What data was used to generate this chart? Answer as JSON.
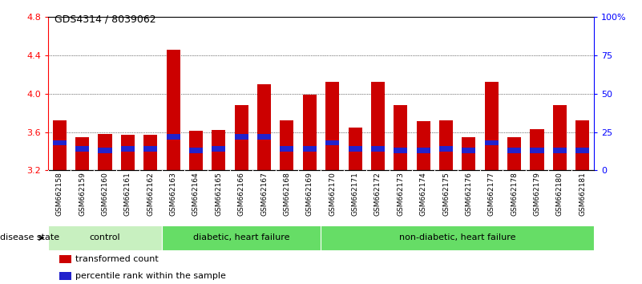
{
  "title": "GDS4314 / 8039062",
  "samples": [
    "GSM662158",
    "GSM662159",
    "GSM662160",
    "GSM662161",
    "GSM662162",
    "GSM662163",
    "GSM662164",
    "GSM662165",
    "GSM662166",
    "GSM662167",
    "GSM662168",
    "GSM662169",
    "GSM662170",
    "GSM662171",
    "GSM662172",
    "GSM662173",
    "GSM662174",
    "GSM662175",
    "GSM662176",
    "GSM662177",
    "GSM662178",
    "GSM662179",
    "GSM662180",
    "GSM662181"
  ],
  "transformed_count": [
    3.72,
    3.55,
    3.58,
    3.57,
    3.57,
    4.46,
    3.61,
    3.62,
    3.88,
    4.1,
    3.72,
    3.99,
    4.12,
    3.65,
    4.12,
    3.88,
    3.71,
    3.72,
    3.55,
    4.12,
    3.55,
    3.63,
    3.88,
    3.72
  ],
  "percentile_rank_pct": [
    18,
    14,
    13,
    14,
    14,
    22,
    13,
    14,
    22,
    22,
    14,
    14,
    18,
    14,
    14,
    13,
    13,
    14,
    13,
    18,
    13,
    13,
    13,
    13
  ],
  "ylim_left": [
    3.2,
    4.8
  ],
  "ylim_right": [
    0,
    100
  ],
  "yticks_left": [
    3.2,
    3.6,
    4.0,
    4.4,
    4.8
  ],
  "yticks_right": [
    0,
    25,
    50,
    75,
    100
  ],
  "ytick_labels_right": [
    "0",
    "25",
    "50",
    "75",
    "100%"
  ],
  "bar_color": "#cc0000",
  "percentile_color": "#2222cc",
  "bar_width": 0.6,
  "base_value": 3.2,
  "groups": [
    {
      "label": "control",
      "start": 0,
      "end": 4,
      "color": "#bbeeaa"
    },
    {
      "label": "diabetic, heart failure",
      "start": 5,
      "end": 11,
      "color": "#44dd44"
    },
    {
      "label": "non-diabetic, heart failure",
      "start": 12,
      "end": 23,
      "color": "#44dd44"
    }
  ],
  "legend_items": [
    {
      "label": "transformed count",
      "color": "#cc0000"
    },
    {
      "label": "percentile rank within the sample",
      "color": "#2222cc"
    }
  ]
}
